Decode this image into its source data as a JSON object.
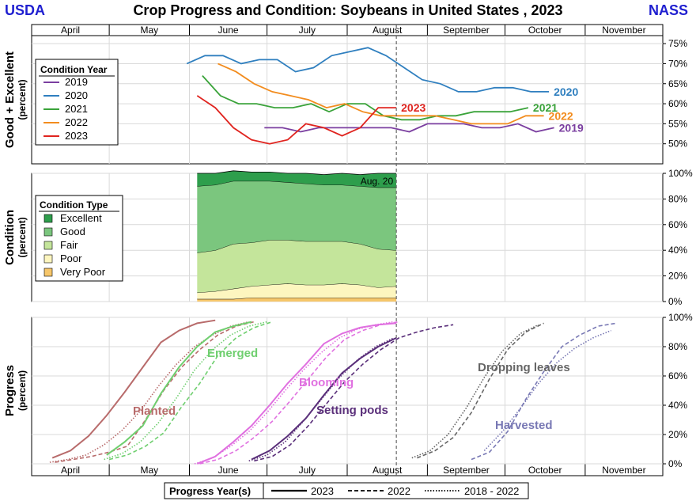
{
  "header": {
    "left_logo": "USDA",
    "right_logo": "NASS",
    "title": "Crop Progress and Condition: Soybeans in United States , 2023"
  },
  "colors": {
    "brand_blue": "#1f1fd0",
    "y2019": "#7b3fa0",
    "y2020": "#2f7fbf",
    "y2021": "#3aa33a",
    "y2022": "#f28c1e",
    "y2023": "#e0241f",
    "excellent": "#2e9e4c",
    "good": "#7bc67e",
    "fair": "#c4e59b",
    "poor": "#fdf6bf",
    "very_poor": "#f6c66a",
    "planted": "#b86b6b",
    "emerged": "#6fcf6f",
    "blooming": "#e070e0",
    "setting_pods": "#5a2f7a",
    "dropping_leaves": "#666666",
    "harvested": "#7878b4"
  },
  "months": [
    "April",
    "May",
    "June",
    "July",
    "August",
    "September",
    "October",
    "November"
  ],
  "chart_data": [
    {
      "id": "good_excellent",
      "type": "line",
      "ylabel": "Good + Excellent",
      "ylabel_sub": "(percent)",
      "ylim": [
        45,
        77
      ],
      "ytick_labels": [
        "50%",
        "55%",
        "60%",
        "65%",
        "70%",
        "75%"
      ],
      "yticks": [
        50,
        55,
        60,
        65,
        70,
        75
      ],
      "legend_title": "Condition Year",
      "legend_position": "left",
      "series": [
        {
          "name": "2019",
          "color": "#7b3fa0",
          "label": "2019",
          "x": [
            "2019-06-30",
            "2019-07-07",
            "2019-07-14",
            "2019-07-21",
            "2019-07-28",
            "2019-08-04",
            "2019-08-11",
            "2019-08-18",
            "2019-08-25",
            "2019-09-01",
            "2019-09-08",
            "2019-09-15",
            "2019-09-22",
            "2019-09-29",
            "2019-10-06",
            "2019-10-13",
            "2019-10-20"
          ],
          "y": [
            54,
            54,
            53,
            54,
            54,
            54,
            54,
            54,
            53,
            55,
            55,
            55,
            54,
            54,
            55,
            53,
            54
          ]
        },
        {
          "name": "2020",
          "color": "#2f7fbf",
          "label": "2020",
          "x": [
            "2020-05-31",
            "2020-06-07",
            "2020-06-14",
            "2020-06-21",
            "2020-06-28",
            "2020-07-05",
            "2020-07-12",
            "2020-07-19",
            "2020-07-26",
            "2020-08-02",
            "2020-08-09",
            "2020-08-16",
            "2020-08-23",
            "2020-08-30",
            "2020-09-06",
            "2020-09-13",
            "2020-09-20",
            "2020-09-27",
            "2020-10-04",
            "2020-10-11",
            "2020-10-18"
          ],
          "y": [
            70,
            72,
            72,
            70,
            71,
            71,
            68,
            69,
            72,
            73,
            74,
            72,
            69,
            66,
            65,
            63,
            63,
            64,
            64,
            63,
            63
          ]
        },
        {
          "name": "2021",
          "color": "#3aa33a",
          "label": "2021",
          "x": [
            "2021-06-06",
            "2021-06-13",
            "2021-06-20",
            "2021-06-27",
            "2021-07-04",
            "2021-07-11",
            "2021-07-18",
            "2021-07-25",
            "2021-08-01",
            "2021-08-08",
            "2021-08-15",
            "2021-08-22",
            "2021-08-29",
            "2021-09-05",
            "2021-09-12",
            "2021-09-19",
            "2021-09-26",
            "2021-10-03",
            "2021-10-10"
          ],
          "y": [
            67,
            62,
            60,
            60,
            59,
            59,
            60,
            58,
            60,
            60,
            57,
            56,
            56,
            57,
            57,
            58,
            58,
            58,
            59
          ]
        },
        {
          "name": "2022",
          "color": "#f28c1e",
          "label": "2022",
          "x": [
            "2022-06-12",
            "2022-06-19",
            "2022-06-26",
            "2022-07-03",
            "2022-07-10",
            "2022-07-17",
            "2022-07-24",
            "2022-07-31",
            "2022-08-07",
            "2022-08-14",
            "2022-08-21",
            "2022-08-28",
            "2022-09-04",
            "2022-09-11",
            "2022-09-18",
            "2022-09-25",
            "2022-10-02",
            "2022-10-09",
            "2022-10-16"
          ],
          "y": [
            70,
            68,
            65,
            63,
            62,
            61,
            59,
            60,
            58,
            57,
            57,
            57,
            57,
            56,
            55,
            55,
            55,
            57,
            57
          ]
        },
        {
          "name": "2023",
          "color": "#e0241f",
          "label": "2023",
          "x": [
            "2023-06-04",
            "2023-06-11",
            "2023-06-18",
            "2023-06-25",
            "2023-07-02",
            "2023-07-09",
            "2023-07-16",
            "2023-07-23",
            "2023-07-30",
            "2023-08-06",
            "2023-08-13",
            "2023-08-20"
          ],
          "y": [
            62,
            59,
            54,
            51,
            50,
            51,
            55,
            54,
            52,
            54,
            59,
            59
          ]
        }
      ],
      "current_week": "2023-08-20"
    },
    {
      "id": "condition",
      "type": "area",
      "ylabel": "Condition",
      "ylabel_sub": "(percent)",
      "ylim": [
        0,
        100
      ],
      "ytick_labels": [
        "0%",
        "20%",
        "40%",
        "60%",
        "80%",
        "100%"
      ],
      "yticks": [
        0,
        20,
        40,
        60,
        80,
        100
      ],
      "legend_title": "Condition Type",
      "legend_position": "left",
      "annotation": "Aug. 20",
      "x": [
        "2023-06-04",
        "2023-06-11",
        "2023-06-18",
        "2023-06-25",
        "2023-07-02",
        "2023-07-09",
        "2023-07-16",
        "2023-07-23",
        "2023-07-30",
        "2023-08-06",
        "2023-08-13",
        "2023-08-20"
      ],
      "series": [
        {
          "name": "Very Poor",
          "label": "Very Poor",
          "color": "#f6c66a",
          "values": [
            2,
            2,
            2,
            3,
            3,
            3,
            3,
            3,
            3,
            3,
            3,
            3
          ]
        },
        {
          "name": "Poor",
          "label": "Poor",
          "color": "#fdf6bf",
          "values": [
            5,
            6,
            8,
            9,
            10,
            11,
            10,
            10,
            11,
            10,
            8,
            9
          ]
        },
        {
          "name": "Fair",
          "label": "Fair",
          "color": "#c4e59b",
          "values": [
            31,
            32,
            35,
            34,
            35,
            34,
            34,
            34,
            33,
            32,
            30,
            28
          ]
        },
        {
          "name": "Good",
          "label": "Good",
          "color": "#7bc67e",
          "values": [
            52,
            51,
            49,
            48,
            46,
            45,
            45,
            44,
            44,
            45,
            48,
            49
          ]
        },
        {
          "name": "Excellent",
          "label": "Excellent",
          "color": "#2e9e4c",
          "values": [
            10,
            9,
            8,
            7,
            7,
            7,
            8,
            8,
            9,
            9,
            11,
            11
          ]
        }
      ]
    },
    {
      "id": "progress",
      "type": "line",
      "ylabel": "Progress",
      "ylabel_sub": "(percent)",
      "ylim": [
        0,
        100
      ],
      "ytick_labels": [
        "0%",
        "20%",
        "40%",
        "60%",
        "80%",
        "100%"
      ],
      "yticks": [
        0,
        20,
        40,
        60,
        80,
        100
      ],
      "legend_title": "Progress Year(s)",
      "legend_position": "bottom",
      "legend_entries": [
        {
          "label": "2023",
          "style": "solid"
        },
        {
          "label": "2022",
          "style": "dashed"
        },
        {
          "label": "2018 - 2022",
          "style": "dotted"
        }
      ],
      "stage_labels": [
        {
          "text": "Planted",
          "color": "#b86b6b"
        },
        {
          "text": "Emerged",
          "color": "#6fcf6f"
        },
        {
          "text": "Blooming",
          "color": "#e070e0"
        },
        {
          "text": "Setting pods",
          "color": "#5a2f7a"
        },
        {
          "text": "Dropping leaves",
          "color": "#666666"
        },
        {
          "text": "Harvested",
          "color": "#7878b4"
        }
      ],
      "series": [
        {
          "name": "Planted 2023",
          "stage": "planted",
          "style": "solid",
          "color": "#b86b6b",
          "x": [
            "2023-04-09",
            "2023-04-16",
            "2023-04-23",
            "2023-04-30",
            "2023-05-07",
            "2023-05-14",
            "2023-05-21",
            "2023-05-28",
            "2023-06-04",
            "2023-06-11"
          ],
          "y": [
            4,
            9,
            19,
            33,
            49,
            66,
            83,
            91,
            96,
            98
          ]
        },
        {
          "name": "Planted 2022",
          "stage": "planted",
          "style": "dashed",
          "color": "#b86b6b",
          "x": [
            "2022-04-10",
            "2022-04-17",
            "2022-04-24",
            "2022-05-01",
            "2022-05-08",
            "2022-05-15",
            "2022-05-22",
            "2022-05-29",
            "2022-06-05",
            "2022-06-12",
            "2022-06-19",
            "2022-06-26"
          ],
          "y": [
            1,
            3,
            5,
            8,
            12,
            30,
            50,
            66,
            78,
            88,
            94,
            97
          ]
        },
        {
          "name": "Planted 2018-2022",
          "stage": "planted",
          "style": "dotted",
          "color": "#b86b6b",
          "x": [
            "2018-04-08",
            "2018-04-15",
            "2018-04-22",
            "2018-04-29",
            "2018-05-06",
            "2018-05-13",
            "2018-05-20",
            "2018-05-27",
            "2018-06-03",
            "2018-06-10",
            "2018-06-17",
            "2018-06-24"
          ],
          "y": [
            1,
            3,
            6,
            13,
            23,
            36,
            53,
            68,
            80,
            88,
            94,
            97
          ]
        },
        {
          "name": "Emerged 2023",
          "stage": "emerged",
          "style": "solid",
          "color": "#6fcf6f",
          "x": [
            "2023-04-30",
            "2023-05-07",
            "2023-05-14",
            "2023-05-21",
            "2023-05-28",
            "2023-06-04",
            "2023-06-11",
            "2023-06-18",
            "2023-06-25"
          ],
          "y": [
            6,
            15,
            26,
            48,
            66,
            80,
            90,
            94,
            97
          ]
        },
        {
          "name": "Emerged 2022",
          "stage": "emerged",
          "style": "dashed",
          "color": "#6fcf6f",
          "x": [
            "2022-05-01",
            "2022-05-08",
            "2022-05-15",
            "2022-05-22",
            "2022-05-29",
            "2022-06-05",
            "2022-06-12",
            "2022-06-19",
            "2022-06-26",
            "2022-07-03"
          ],
          "y": [
            3,
            6,
            12,
            21,
            39,
            55,
            74,
            86,
            93,
            97
          ]
        },
        {
          "name": "Emerged 2018-2022",
          "stage": "emerged",
          "style": "dotted",
          "color": "#6fcf6f",
          "x": [
            "2018-04-29",
            "2018-05-06",
            "2018-05-13",
            "2018-05-20",
            "2018-05-27",
            "2018-06-03",
            "2018-06-10",
            "2018-06-17",
            "2018-06-24",
            "2018-07-01"
          ],
          "y": [
            3,
            7,
            15,
            28,
            45,
            64,
            78,
            88,
            94,
            97
          ]
        },
        {
          "name": "Blooming 2023",
          "stage": "blooming",
          "style": "solid",
          "color": "#e070e0",
          "x": [
            "2023-06-04",
            "2023-06-11",
            "2023-06-18",
            "2023-06-25",
            "2023-07-02",
            "2023-07-09",
            "2023-07-16",
            "2023-07-23",
            "2023-07-30",
            "2023-08-06",
            "2023-08-13",
            "2023-08-20"
          ],
          "y": [
            0,
            5,
            15,
            26,
            40,
            55,
            68,
            82,
            89,
            93,
            95,
            96
          ]
        },
        {
          "name": "Blooming 2022",
          "stage": "blooming",
          "style": "dashed",
          "color": "#e070e0",
          "x": [
            "2022-06-05",
            "2022-06-12",
            "2022-06-19",
            "2022-06-26",
            "2022-07-03",
            "2022-07-10",
            "2022-07-17",
            "2022-07-24",
            "2022-07-31",
            "2022-08-07",
            "2022-08-14",
            "2022-08-21"
          ],
          "y": [
            0,
            3,
            9,
            18,
            29,
            43,
            58,
            73,
            85,
            91,
            95,
            97
          ]
        },
        {
          "name": "Blooming 2018-2022",
          "stage": "blooming",
          "style": "dotted",
          "color": "#e070e0",
          "x": [
            "2018-06-03",
            "2018-06-10",
            "2018-06-17",
            "2018-06-24",
            "2018-07-01",
            "2018-07-08",
            "2018-07-15",
            "2018-07-22",
            "2018-07-29",
            "2018-08-05",
            "2018-08-12",
            "2018-08-19"
          ],
          "y": [
            0,
            4,
            12,
            22,
            35,
            50,
            64,
            76,
            86,
            92,
            95,
            97
          ]
        },
        {
          "name": "Setting pods 2023",
          "stage": "setting_pods",
          "style": "solid",
          "color": "#5a2f7a",
          "x": [
            "2023-06-25",
            "2023-07-02",
            "2023-07-09",
            "2023-07-16",
            "2023-07-23",
            "2023-07-30",
            "2023-08-06",
            "2023-08-13",
            "2023-08-20"
          ],
          "y": [
            3,
            9,
            19,
            31,
            47,
            62,
            72,
            80,
            86
          ]
        },
        {
          "name": "Setting pods 2022",
          "stage": "setting_pods",
          "style": "dashed",
          "color": "#5a2f7a",
          "x": [
            "2022-06-26",
            "2022-07-03",
            "2022-07-10",
            "2022-07-17",
            "2022-07-24",
            "2022-07-31",
            "2022-08-07",
            "2022-08-14",
            "2022-08-21",
            "2022-08-28",
            "2022-09-04",
            "2022-09-11"
          ],
          "y": [
            2,
            5,
            13,
            26,
            41,
            56,
            68,
            78,
            86,
            90,
            93,
            95
          ]
        },
        {
          "name": "Setting pods 2018-2022",
          "stage": "setting_pods",
          "style": "dotted",
          "color": "#5a2f7a",
          "x": [
            "2018-06-24",
            "2018-07-01",
            "2018-07-08",
            "2018-07-15",
            "2018-07-22",
            "2018-07-29",
            "2018-08-05",
            "2018-08-12",
            "2018-08-19"
          ],
          "y": [
            2,
            6,
            15,
            29,
            44,
            59,
            71,
            80,
            86
          ]
        },
        {
          "name": "Dropping leaves 2022",
          "stage": "dropping_leaves",
          "style": "dashed",
          "color": "#666666",
          "x": [
            "2022-08-28",
            "2022-09-04",
            "2022-09-11",
            "2022-09-18",
            "2022-09-25",
            "2022-10-02",
            "2022-10-09",
            "2022-10-16"
          ],
          "y": [
            4,
            9,
            18,
            35,
            58,
            78,
            90,
            96
          ]
        },
        {
          "name": "Dropping leaves 2018-2022",
          "stage": "dropping_leaves",
          "style": "dotted",
          "color": "#666666",
          "x": [
            "2018-08-26",
            "2018-09-02",
            "2018-09-09",
            "2018-09-16",
            "2018-09-23",
            "2018-09-30",
            "2018-10-07",
            "2018-10-14"
          ],
          "y": [
            4,
            9,
            20,
            38,
            59,
            77,
            89,
            95
          ]
        },
        {
          "name": "Harvested 2022",
          "stage": "harvested",
          "style": "dashed",
          "color": "#7878b4",
          "x": [
            "2022-09-18",
            "2022-09-25",
            "2022-10-02",
            "2022-10-09",
            "2022-10-16",
            "2022-10-23",
            "2022-10-30",
            "2022-11-06",
            "2022-11-13"
          ],
          "y": [
            3,
            8,
            22,
            44,
            63,
            80,
            88,
            94,
            96
          ]
        },
        {
          "name": "Harvested 2018-2022",
          "stage": "harvested",
          "style": "dotted",
          "color": "#7878b4",
          "x": [
            "2018-09-23",
            "2018-09-30",
            "2018-10-07",
            "2018-10-14",
            "2018-10-21",
            "2018-10-28",
            "2018-11-04",
            "2018-11-11"
          ],
          "y": [
            9,
            22,
            38,
            55,
            69,
            79,
            86,
            91
          ]
        }
      ],
      "current_week": "2023-08-20"
    }
  ]
}
